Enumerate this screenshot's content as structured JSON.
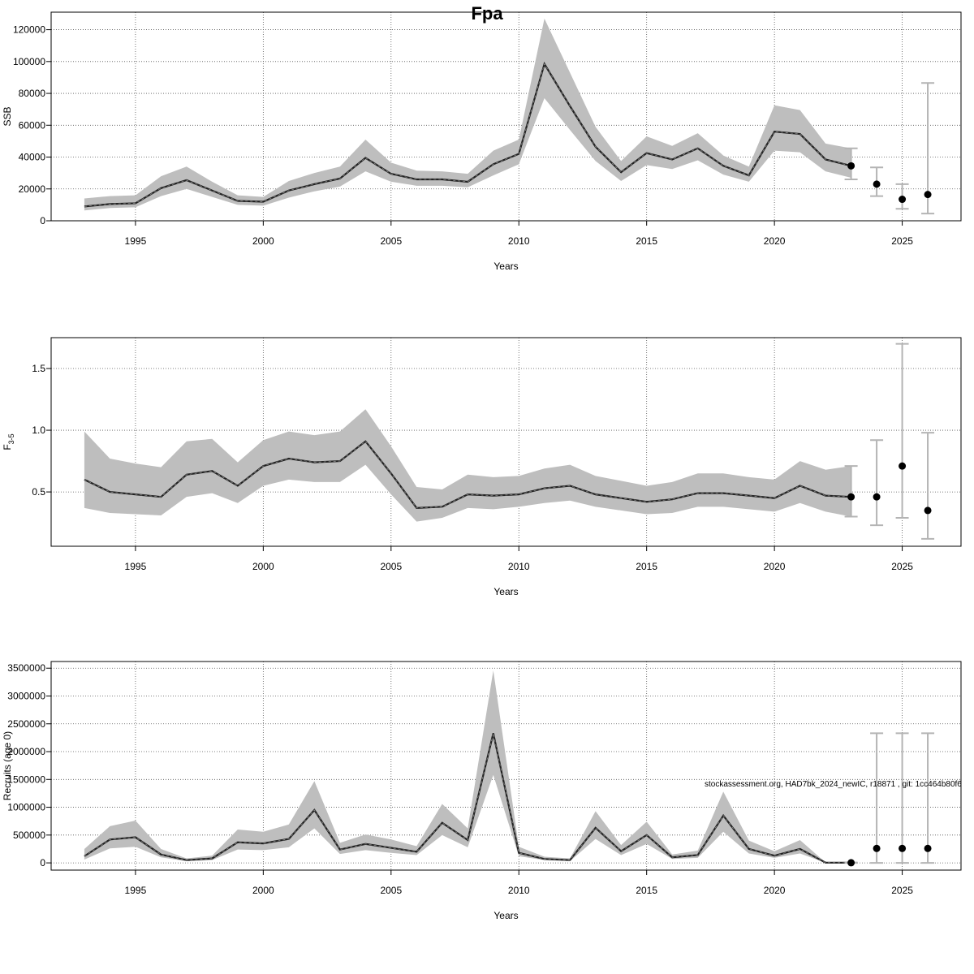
{
  "title": "Fpa",
  "annotation": "stockassessment.org, HAD7bk_2024_newIC, r18871 , git: 1cc464b80f6",
  "chart_data": [
    {
      "type": "line",
      "xlabel": "Years",
      "ylabel": "SSB",
      "x": [
        1993,
        1994,
        1995,
        1996,
        1997,
        1998,
        1999,
        2000,
        2001,
        2002,
        2003,
        2004,
        2005,
        2006,
        2007,
        2008,
        2009,
        2010,
        2011,
        2012,
        2013,
        2014,
        2015,
        2016,
        2017,
        2018,
        2019,
        2020,
        2021,
        2022,
        2023
      ],
      "values": [
        9000,
        10500,
        11000,
        20500,
        25500,
        19000,
        12500,
        12000,
        19000,
        23000,
        26500,
        39500,
        29500,
        26000,
        26000,
        24500,
        35500,
        42000,
        98500,
        72000,
        46500,
        30500,
        42500,
        38500,
        45500,
        34500,
        28500,
        56000,
        54500,
        38500,
        34500
      ],
      "lower": [
        6500,
        8000,
        8500,
        15500,
        20000,
        15000,
        10000,
        9500,
        14500,
        18500,
        21500,
        31000,
        24500,
        22000,
        22000,
        21000,
        28500,
        35500,
        77000,
        57000,
        37500,
        25000,
        35000,
        32500,
        38000,
        29000,
        24500,
        44000,
        43000,
        31000,
        27000
      ],
      "upper": [
        14000,
        15500,
        16000,
        28000,
        34000,
        24500,
        16000,
        15000,
        25000,
        30000,
        34000,
        51000,
        36500,
        31500,
        31000,
        29500,
        44000,
        51000,
        127000,
        93000,
        59000,
        37500,
        53000,
        47000,
        55000,
        41000,
        34000,
        72500,
        69500,
        48500,
        45500
      ],
      "forecast": {
        "x": [
          2023,
          2024,
          2025,
          2026
        ],
        "values": [
          34500,
          23000,
          13500,
          16500
        ],
        "lower": [
          26000,
          15500,
          7500,
          4500
        ],
        "upper": [
          45500,
          33500,
          23000,
          86500
        ]
      },
      "xlim": [
        1991.7,
        2027.3
      ],
      "xticks": [
        1995,
        2000,
        2005,
        2010,
        2015,
        2020,
        2025
      ],
      "ylim": [
        0,
        131000
      ],
      "yticks": [
        0,
        20000,
        40000,
        60000,
        80000,
        100000,
        120000
      ],
      "grid": true,
      "line_color": "#222222",
      "band_color": "#bebebe",
      "errorbar_color": "#b4b4b4",
      "point_color": "#000000"
    },
    {
      "type": "line",
      "xlabel": "Years",
      "ylabel": "F",
      "ylabel_sub": "3-5",
      "x": [
        1993,
        1994,
        1995,
        1996,
        1997,
        1998,
        1999,
        2000,
        2001,
        2002,
        2003,
        2004,
        2005,
        2006,
        2007,
        2008,
        2009,
        2010,
        2011,
        2012,
        2013,
        2014,
        2015,
        2016,
        2017,
        2018,
        2019,
        2020,
        2021,
        2022,
        2023
      ],
      "values": [
        0.6,
        0.5,
        0.48,
        0.46,
        0.64,
        0.67,
        0.55,
        0.71,
        0.77,
        0.74,
        0.75,
        0.91,
        0.65,
        0.37,
        0.38,
        0.48,
        0.47,
        0.48,
        0.53,
        0.55,
        0.48,
        0.45,
        0.42,
        0.44,
        0.49,
        0.49,
        0.47,
        0.45,
        0.55,
        0.47,
        0.46
      ],
      "lower": [
        0.37,
        0.33,
        0.32,
        0.31,
        0.46,
        0.49,
        0.41,
        0.55,
        0.6,
        0.58,
        0.58,
        0.72,
        0.48,
        0.26,
        0.29,
        0.37,
        0.36,
        0.38,
        0.41,
        0.43,
        0.38,
        0.35,
        0.32,
        0.33,
        0.38,
        0.38,
        0.36,
        0.34,
        0.41,
        0.34,
        0.3
      ],
      "upper": [
        0.99,
        0.77,
        0.73,
        0.7,
        0.91,
        0.93,
        0.74,
        0.92,
        0.99,
        0.96,
        0.99,
        1.17,
        0.87,
        0.54,
        0.52,
        0.64,
        0.62,
        0.63,
        0.69,
        0.72,
        0.63,
        0.59,
        0.55,
        0.58,
        0.65,
        0.65,
        0.62,
        0.6,
        0.75,
        0.68,
        0.71
      ],
      "forecast": {
        "x": [
          2023,
          2024,
          2025,
          2026
        ],
        "values": [
          0.46,
          0.46,
          0.71,
          0.35
        ],
        "lower": [
          0.3,
          0.23,
          0.29,
          0.12
        ],
        "upper": [
          0.71,
          0.92,
          1.7,
          0.98
        ]
      },
      "xlim": [
        1991.7,
        2027.3
      ],
      "xticks": [
        1995,
        2000,
        2005,
        2010,
        2015,
        2020,
        2025
      ],
      "ylim": [
        0.06,
        1.75
      ],
      "yticks": [
        0.5,
        {
          "value": 1,
          "label": "1.0"
        },
        1.5
      ],
      "grid": true,
      "line_color": "#222222",
      "band_color": "#bebebe",
      "errorbar_color": "#b4b4b4",
      "point_color": "#000000"
    },
    {
      "type": "line",
      "xlabel": "Years",
      "ylabel": "Recruits (age 0)",
      "x": [
        1993,
        1994,
        1995,
        1996,
        1997,
        1998,
        1999,
        2000,
        2001,
        2002,
        2003,
        2004,
        2005,
        2006,
        2007,
        2008,
        2009,
        2010,
        2011,
        2012,
        2013,
        2014,
        2015,
        2016,
        2017,
        2018,
        2019,
        2020,
        2021,
        2022,
        2023
      ],
      "values": [
        120000,
        420000,
        460000,
        150000,
        50000,
        80000,
        370000,
        350000,
        430000,
        950000,
        240000,
        340000,
        270000,
        200000,
        720000,
        410000,
        2330000,
        180000,
        70000,
        50000,
        630000,
        210000,
        500000,
        100000,
        140000,
        850000,
        250000,
        130000,
        250000,
        5000,
        3000
      ],
      "lower": [
        60000,
        260000,
        290000,
        100000,
        30000,
        50000,
        240000,
        230000,
        280000,
        620000,
        160000,
        230000,
        180000,
        140000,
        500000,
        280000,
        1580000,
        120000,
        50000,
        30000,
        430000,
        140000,
        340000,
        70000,
        90000,
        560000,
        170000,
        90000,
        170000,
        2000,
        1000
      ],
      "upper": [
        250000,
        660000,
        760000,
        250000,
        80000,
        130000,
        600000,
        560000,
        690000,
        1470000,
        360000,
        510000,
        420000,
        300000,
        1060000,
        620000,
        3460000,
        290000,
        110000,
        80000,
        930000,
        320000,
        740000,
        150000,
        220000,
        1280000,
        400000,
        210000,
        410000,
        8000,
        6000
      ],
      "forecast": {
        "x": [
          2023,
          2024,
          2025,
          2026
        ],
        "values": [
          3000,
          260000,
          260000,
          260000
        ],
        "lower": [
          0,
          0,
          0,
          0
        ],
        "upper": [
          6000,
          2330000,
          2330000,
          2330000
        ]
      },
      "xlim": [
        1991.7,
        2027.3
      ],
      "xticks": [
        1995,
        2000,
        2005,
        2010,
        2015,
        2020,
        2025
      ],
      "ylim": [
        -130000,
        3620000
      ],
      "yticks": [
        0,
        500000,
        1000000,
        1500000,
        2000000,
        2500000,
        3000000,
        3500000
      ],
      "grid": true,
      "line_color": "#222222",
      "band_color": "#bebebe",
      "errorbar_color": "#b4b4b4",
      "point_color": "#000000"
    }
  ]
}
